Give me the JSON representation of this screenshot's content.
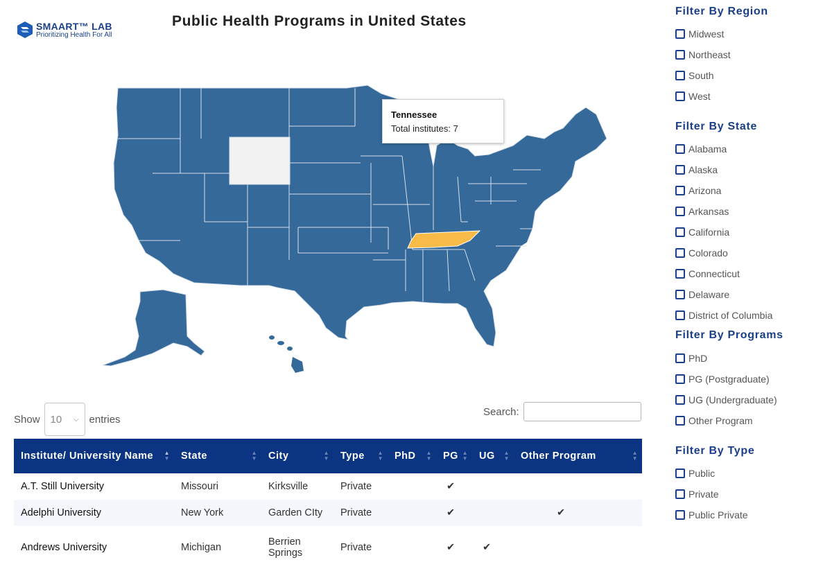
{
  "logo": {
    "name": "SMAART™ LAB",
    "tagline": "Prioritizing Health For All"
  },
  "page_title": "Public Health Programs in United States",
  "map": {
    "highlighted_state": "Tennessee",
    "colors": {
      "state_fill": "#34699a",
      "state_border": "#d7e0ea",
      "highlight": "#f8bb47",
      "no_data": "#f2f2f2"
    },
    "tooltip": {
      "title": "Tennessee",
      "line": "Total institutes: 7"
    }
  },
  "entries": {
    "show_label": "Show",
    "value": "10",
    "entries_label": "entries"
  },
  "search": {
    "label": "Search:",
    "value": ""
  },
  "table": {
    "headers": [
      "Institute/ University Name",
      "State",
      "City",
      "Type",
      "PhD",
      "PG",
      "UG",
      "Other Program"
    ],
    "rows": [
      {
        "name": "A.T. Still University",
        "state": "Missouri",
        "city": "Kirksville",
        "type": "Private",
        "phd": "",
        "pg": "✔",
        "ug": "",
        "other": ""
      },
      {
        "name": "Adelphi University",
        "state": "New York",
        "city": "Garden CIty",
        "type": "Private",
        "phd": "",
        "pg": "✔",
        "ug": "",
        "other": "✔"
      },
      {
        "name": "Andrews University",
        "state": "Michigan",
        "city": "Berrien Springs",
        "type": "Private",
        "phd": "",
        "pg": "✔",
        "ug": "✔",
        "other": ""
      }
    ]
  },
  "filters": {
    "region": {
      "title": "Filter By Region",
      "options": [
        "Midwest",
        "Northeast",
        "South",
        "West"
      ]
    },
    "state": {
      "title": "Filter By State",
      "options": [
        "Alabama",
        "Alaska",
        "Arizona",
        "Arkansas",
        "California",
        "Colorado",
        "Connecticut",
        "Delaware",
        "District of Columbia"
      ]
    },
    "programs": {
      "title": "Filter By Programs",
      "options": [
        "PhD",
        "PG (Postgraduate)",
        "UG (Undergraduate)",
        "Other Program"
      ]
    },
    "type": {
      "title": "Filter By Type",
      "options": [
        "Public",
        "Private",
        "Public Private"
      ]
    }
  }
}
